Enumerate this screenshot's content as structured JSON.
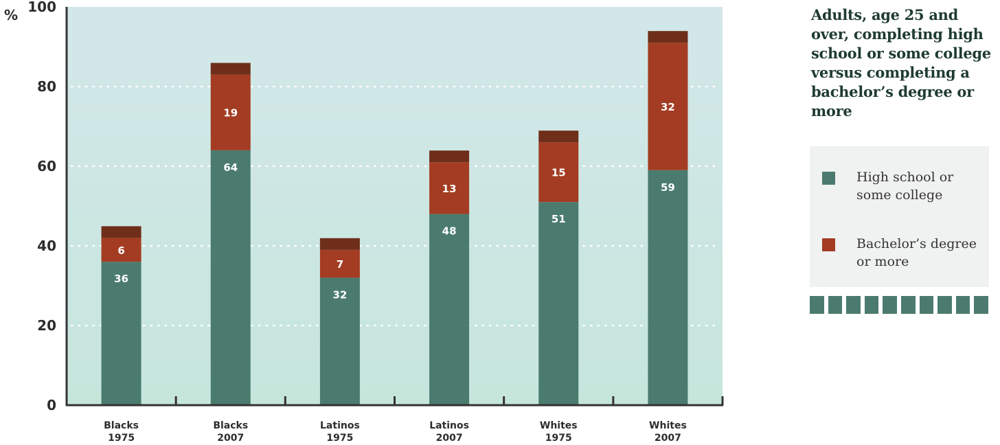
{
  "chart_data": {
    "type": "bar",
    "stacked": true,
    "categories": [
      [
        "Blacks",
        "1975"
      ],
      [
        "Blacks",
        "2007"
      ],
      [
        "Latinos",
        "1975"
      ],
      [
        "Latinos",
        "2007"
      ],
      [
        "Whites",
        "1975"
      ],
      [
        "Whites",
        "2007"
      ]
    ],
    "series": [
      {
        "name": "High school or some college",
        "values": [
          36,
          64,
          32,
          48,
          51,
          59
        ],
        "color": "#4b7b6f"
      },
      {
        "name": "Bachelor’s degree or more",
        "values": [
          6,
          19,
          7,
          13,
          15,
          32
        ],
        "color": "#a33c22",
        "cap_color": "#6e2e1a"
      }
    ],
    "ylabel": "%",
    "ylim": [
      0,
      100
    ],
    "yticks": [
      0,
      20,
      40,
      60,
      80,
      100
    ],
    "grid": true,
    "legend": "right",
    "background_gradient": [
      "#d3e7ea",
      "#c6e6dc"
    ]
  },
  "side_panel": {
    "title": "Adults, age 25 and over, completing high school or some college versus completing a bachelor’s degree or more"
  }
}
